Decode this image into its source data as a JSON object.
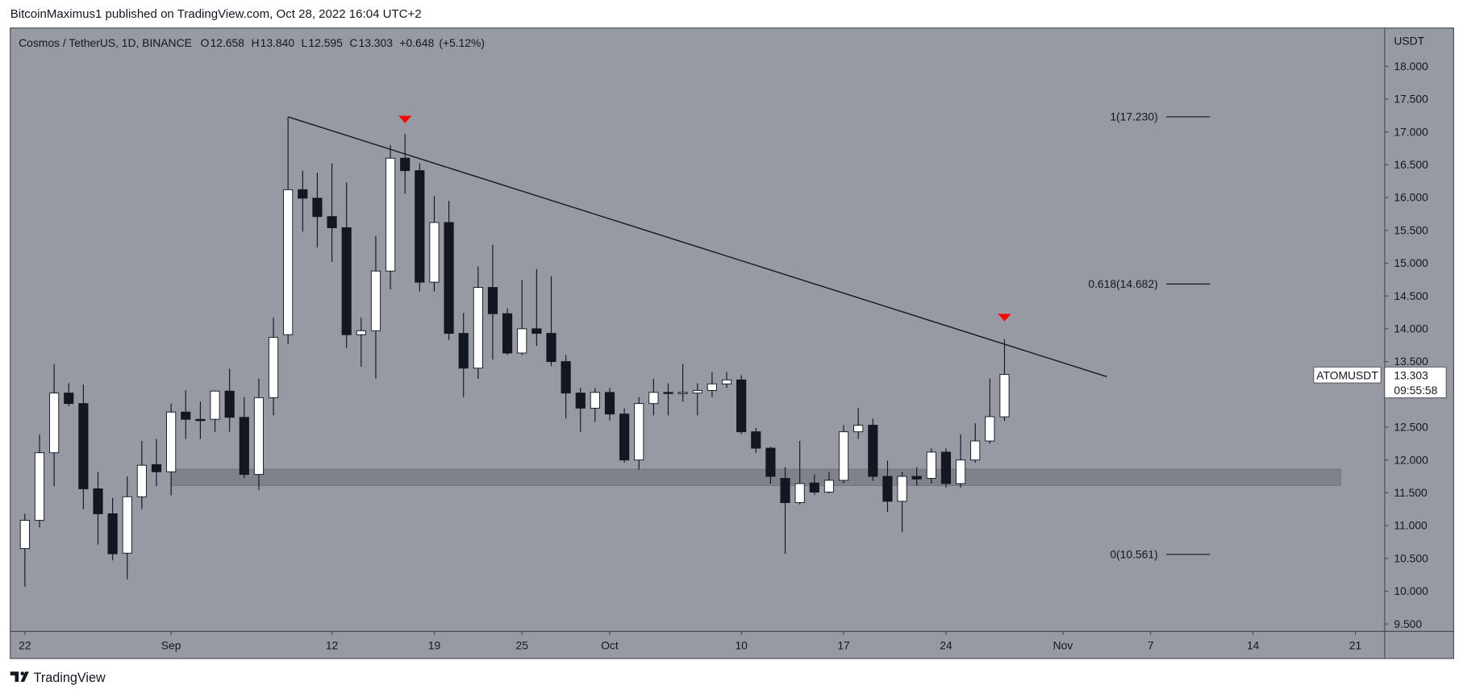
{
  "header": {
    "text": "BitcoinMaximus1 published on TradingView.com, Oct 28, 2022 16:04 UTC+2"
  },
  "footer": {
    "brand": "TradingView"
  },
  "chart_data": {
    "type": "candlestick",
    "title": "Cosmos / TetherUS, 1D, BINANCE",
    "legend": {
      "open_label": "O",
      "open": "12.658",
      "high_label": "H",
      "high": "13.840",
      "low_label": "L",
      "low": "12.595",
      "close_label": "C",
      "close": "13.303",
      "change": "+0.648",
      "change_pct": "(+5.12%)"
    },
    "y_axis_label": "USDT",
    "x": [
      "2022-08-22",
      "2022-08-23",
      "2022-08-24",
      "2022-08-25",
      "2022-08-26",
      "2022-08-27",
      "2022-08-28",
      "2022-08-29",
      "2022-08-30",
      "2022-08-31",
      "2022-09-01",
      "2022-09-02",
      "2022-09-03",
      "2022-09-04",
      "2022-09-05",
      "2022-09-06",
      "2022-09-07",
      "2022-09-08",
      "2022-09-09",
      "2022-09-10",
      "2022-09-11",
      "2022-09-12",
      "2022-09-13",
      "2022-09-14",
      "2022-09-15",
      "2022-09-16",
      "2022-09-17",
      "2022-09-18",
      "2022-09-19",
      "2022-09-20",
      "2022-09-21",
      "2022-09-22",
      "2022-09-23",
      "2022-09-24",
      "2022-09-25",
      "2022-09-26",
      "2022-09-27",
      "2022-09-28",
      "2022-09-29",
      "2022-09-30",
      "2022-10-01",
      "2022-10-02",
      "2022-10-03",
      "2022-10-04",
      "2022-10-05",
      "2022-10-06",
      "2022-10-07",
      "2022-10-08",
      "2022-10-09",
      "2022-10-10",
      "2022-10-11",
      "2022-10-12",
      "2022-10-13",
      "2022-10-14",
      "2022-10-15",
      "2022-10-16",
      "2022-10-17",
      "2022-10-18",
      "2022-10-19",
      "2022-10-20",
      "2022-10-21",
      "2022-10-22",
      "2022-10-23",
      "2022-10-24",
      "2022-10-25",
      "2022-10-26",
      "2022-10-27",
      "2022-10-28"
    ],
    "open": [
      10.65,
      11.08,
      12.11,
      13.02,
      12.86,
      11.56,
      11.18,
      10.58,
      11.44,
      11.93,
      11.82,
      12.73,
      12.62,
      12.62,
      13.05,
      12.65,
      11.78,
      12.95,
      13.91,
      16.12,
      15.99,
      15.71,
      15.54,
      13.91,
      13.97,
      14.88,
      16.6,
      16.41,
      14.71,
      15.62,
      13.93,
      13.4,
      14.63,
      14.23,
      13.63,
      14.0,
      13.93,
      13.5,
      13.02,
      12.79,
      13.03,
      12.7,
      12.0,
      12.86,
      13.03,
      13.02,
      13.02,
      13.06,
      13.16,
      13.22,
      12.43,
      12.18,
      11.72,
      11.35,
      11.65,
      11.51,
      11.69,
      12.43,
      12.53,
      11.75,
      11.37,
      11.75,
      11.72,
      12.12,
      11.64,
      12.0,
      12.29,
      12.658
    ],
    "high": [
      11.18,
      12.39,
      13.46,
      13.17,
      13.15,
      11.82,
      11.42,
      11.75,
      12.29,
      12.32,
      12.86,
      13.06,
      12.89,
      13.06,
      13.39,
      12.96,
      13.24,
      14.17,
      17.23,
      16.41,
      16.38,
      16.52,
      16.23,
      14.17,
      15.41,
      16.8,
      16.97,
      16.52,
      16.02,
      15.95,
      14.24,
      14.95,
      15.28,
      14.31,
      14.74,
      14.91,
      14.8,
      13.6,
      13.1,
      13.1,
      13.1,
      12.79,
      12.96,
      13.24,
      13.17,
      13.46,
      13.17,
      13.34,
      13.34,
      13.29,
      12.49,
      12.2,
      11.89,
      12.29,
      11.78,
      11.82,
      12.53,
      12.79,
      12.63,
      11.99,
      11.82,
      11.89,
      12.18,
      12.18,
      12.39,
      12.56,
      13.24,
      13.84
    ],
    "low": [
      10.07,
      10.97,
      11.6,
      12.82,
      11.25,
      10.71,
      10.47,
      10.18,
      11.25,
      11.6,
      11.46,
      12.32,
      12.32,
      12.43,
      12.43,
      11.72,
      11.54,
      12.68,
      13.77,
      15.48,
      15.24,
      15.02,
      13.71,
      13.42,
      13.24,
      14.6,
      16.06,
      14.57,
      14.57,
      13.83,
      12.96,
      13.24,
      13.53,
      13.6,
      13.6,
      13.74,
      13.43,
      12.63,
      12.43,
      12.58,
      12.6,
      11.96,
      11.85,
      12.68,
      12.68,
      12.89,
      12.68,
      12.96,
      13.1,
      12.39,
      12.11,
      11.64,
      10.57,
      11.32,
      11.47,
      11.49,
      11.64,
      12.32,
      11.68,
      11.21,
      10.9,
      11.61,
      11.64,
      11.58,
      11.58,
      11.96,
      12.25,
      12.595
    ],
    "close": [
      11.08,
      12.11,
      13.02,
      12.86,
      11.56,
      11.18,
      10.57,
      11.44,
      11.92,
      11.82,
      12.73,
      12.62,
      12.6,
      13.05,
      12.65,
      11.78,
      12.95,
      13.87,
      16.12,
      15.99,
      15.71,
      15.54,
      13.91,
      13.97,
      14.88,
      16.6,
      16.41,
      14.71,
      15.62,
      13.93,
      13.4,
      14.63,
      14.23,
      13.63,
      14.0,
      13.93,
      13.5,
      13.02,
      12.79,
      13.03,
      12.7,
      12.0,
      12.86,
      13.03,
      13.02,
      13.03,
      13.06,
      13.16,
      13.22,
      12.43,
      12.18,
      11.75,
      11.35,
      11.64,
      11.51,
      11.69,
      12.43,
      12.53,
      11.75,
      11.37,
      11.75,
      11.71,
      12.12,
      11.64,
      12.0,
      12.29,
      12.66,
      13.303
    ],
    "up_color": "#ffffff",
    "down_color": "#131722",
    "wick_color": "#131722",
    "xlim": [
      "2022-08-21",
      "2022-11-23"
    ],
    "xticks": [
      {
        "value": "2022-08-22",
        "label": "22"
      },
      {
        "value": "2022-09-01",
        "label": "Sep"
      },
      {
        "value": "2022-09-12",
        "label": "12"
      },
      {
        "value": "2022-09-19",
        "label": "19"
      },
      {
        "value": "2022-09-25",
        "label": "25"
      },
      {
        "value": "2022-10-01",
        "label": "Oct"
      },
      {
        "value": "2022-10-10",
        "label": "10"
      },
      {
        "value": "2022-10-17",
        "label": "17"
      },
      {
        "value": "2022-10-24",
        "label": "24"
      },
      {
        "value": "2022-11-01",
        "label": "Nov"
      },
      {
        "value": "2022-11-07",
        "label": "7"
      },
      {
        "value": "2022-11-14",
        "label": "14"
      },
      {
        "value": "2022-11-21",
        "label": "21"
      }
    ],
    "ylim": [
      9.387,
      18.584
    ],
    "yticks": [
      {
        "value": 9.5,
        "label": "9.500"
      },
      {
        "value": 10,
        "label": "10.000"
      },
      {
        "value": 10.5,
        "label": "10.500"
      },
      {
        "value": 11,
        "label": "11.000"
      },
      {
        "value": 11.5,
        "label": "11.500"
      },
      {
        "value": 12,
        "label": "12.000"
      },
      {
        "value": 12.5,
        "label": "12.500"
      },
      {
        "value": 13,
        "label": "13.000"
      },
      {
        "value": 13.5,
        "label": "13.500"
      },
      {
        "value": 14,
        "label": "14.000"
      },
      {
        "value": 14.5,
        "label": "14.500"
      },
      {
        "value": 15,
        "label": "15.000"
      },
      {
        "value": 15.5,
        "label": "15.500"
      },
      {
        "value": 16,
        "label": "16.000"
      },
      {
        "value": 16.5,
        "label": "16.500"
      },
      {
        "value": 17,
        "label": "17.000"
      },
      {
        "value": 17.5,
        "label": "17.500"
      },
      {
        "value": 18,
        "label": "18.000"
      }
    ],
    "grid": false,
    "fib_levels": [
      {
        "label": "1(17.230)",
        "value": 17.23
      },
      {
        "label": "0.618(14.682)",
        "value": 14.682
      },
      {
        "label": "0(10.561)",
        "value": 10.561
      }
    ],
    "trendline": {
      "x": [
        "2022-09-09",
        "2022-11-04"
      ],
      "y": [
        17.23,
        13.27
      ]
    },
    "zone": {
      "x": [
        "2022-09-01",
        "2022-11-20"
      ],
      "y": [
        11.61,
        11.86
      ],
      "color": "#7b7e86"
    },
    "markers": {
      "x": [
        "2022-09-17",
        "2022-10-28"
      ],
      "y": [
        17.19,
        14.17
      ],
      "color": "#ff0000"
    },
    "price_tag": {
      "symbol": "ATOMUSDT",
      "price": "13.303",
      "value": 13.303,
      "countdown": "09:55:58"
    }
  }
}
